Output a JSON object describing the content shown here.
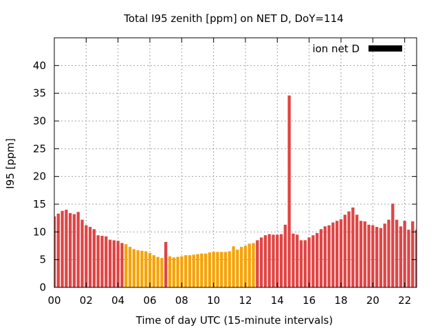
{
  "chart_data": {
    "type": "bar",
    "title": "Total I95 zenith [ppm] on NET D, DoY=114",
    "xlabel": "Time of day UTC (15-minute intervals)",
    "ylabel": "I95 [ppm]",
    "xlim": [
      0,
      22.75
    ],
    "ylim": [
      0,
      45
    ],
    "x_ticks": [
      0,
      2,
      4,
      6,
      8,
      10,
      12,
      14,
      16,
      18,
      20,
      22
    ],
    "x_tick_labels": [
      "00",
      "02",
      "04",
      "06",
      "08",
      "10",
      "12",
      "14",
      "16",
      "18",
      "20",
      "22"
    ],
    "y_ticks": [
      0,
      5,
      10,
      15,
      20,
      25,
      30,
      35,
      40
    ],
    "y_tick_labels": [
      "0",
      "5",
      "10",
      "15",
      "20",
      "25",
      "30",
      "35",
      "40"
    ],
    "grid": true,
    "legend": {
      "label": "ion net D",
      "color": "#000000",
      "placement": "top-right"
    },
    "colors": {
      "high": "#e04545",
      "low": "#f5a30a"
    },
    "interval_hours": 0.25,
    "values": [
      12.8,
      13.3,
      13.8,
      14.0,
      13.4,
      13.2,
      13.6,
      12.2,
      11.2,
      10.9,
      10.5,
      9.4,
      9.3,
      9.2,
      8.6,
      8.5,
      8.4,
      8.0,
      7.8,
      7.3,
      6.9,
      6.7,
      6.6,
      6.5,
      6.2,
      5.8,
      5.5,
      5.3,
      8.2,
      5.6,
      5.4,
      5.5,
      5.6,
      5.8,
      5.8,
      5.9,
      6.0,
      6.1,
      6.1,
      6.3,
      6.4,
      6.4,
      6.4,
      6.4,
      6.5,
      7.4,
      6.8,
      7.3,
      7.5,
      7.9,
      8.0,
      8.5,
      9.0,
      9.4,
      9.6,
      9.5,
      9.5,
      9.6,
      11.3,
      34.6,
      9.7,
      9.5,
      8.5,
      8.5,
      9.0,
      9.4,
      9.8,
      10.5,
      11.0,
      11.2,
      11.7,
      12.0,
      12.3,
      13.1,
      13.7,
      14.4,
      13.1,
      12.0,
      11.9,
      11.3,
      11.2,
      10.9,
      10.7,
      11.5,
      12.2,
      15.1,
      12.2,
      11.0,
      12.0,
      10.4,
      11.9,
      10.4
    ],
    "bar_colors": [
      "high",
      "high",
      "high",
      "high",
      "high",
      "high",
      "high",
      "high",
      "high",
      "high",
      "high",
      "high",
      "high",
      "high",
      "high",
      "high",
      "high",
      "high",
      "low",
      "low",
      "low",
      "low",
      "low",
      "low",
      "low",
      "low",
      "low",
      "low",
      "high",
      "low",
      "low",
      "low",
      "low",
      "low",
      "low",
      "low",
      "low",
      "low",
      "low",
      "low",
      "low",
      "low",
      "low",
      "low",
      "low",
      "low",
      "low",
      "low",
      "low",
      "low",
      "low",
      "high",
      "high",
      "high",
      "high",
      "high",
      "high",
      "high",
      "high",
      "high",
      "high",
      "high",
      "high",
      "high",
      "high",
      "high",
      "high",
      "high",
      "high",
      "high",
      "high",
      "high",
      "high",
      "high",
      "high",
      "high",
      "high",
      "high",
      "high",
      "high",
      "high",
      "high",
      "high",
      "high",
      "high",
      "high",
      "high",
      "high",
      "high",
      "high",
      "high",
      "high"
    ]
  }
}
